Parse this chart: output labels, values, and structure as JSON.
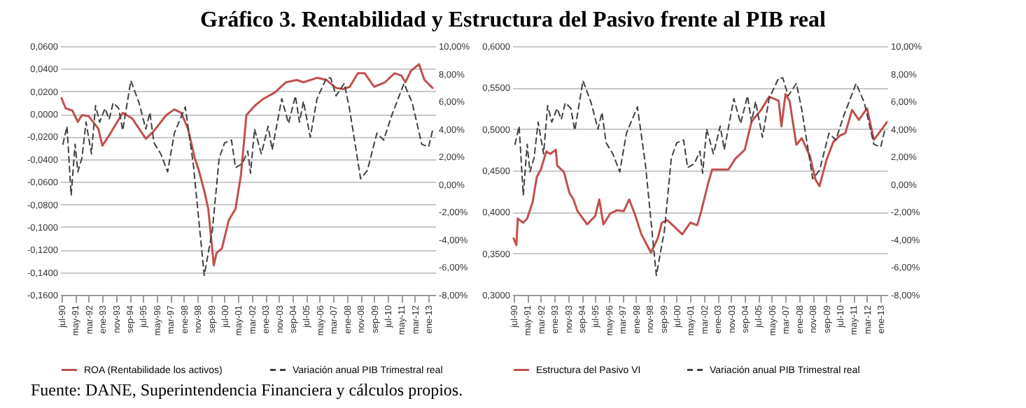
{
  "chart_data": [
    {
      "type": "line",
      "title": "Gráfico 3. Rentabilidad y Estructura del Pasivo frente al PIB real",
      "annotations": [
        "Fuente: DANE, Superintendencia Financiera y cálculos propios."
      ],
      "xlim": [
        "1990-06",
        "2013-06"
      ],
      "xticks": [
        {
          "value": "1990-07",
          "label": "jul-90"
        },
        {
          "value": "1991-05",
          "label": "may-91"
        },
        {
          "value": "1992-03",
          "label": "mar-92"
        },
        {
          "value": "1993-01",
          "label": "ene-93"
        },
        {
          "value": "1993-11",
          "label": "nov-93"
        },
        {
          "value": "1994-09",
          "label": "sep-94"
        },
        {
          "value": "1995-07",
          "label": "jul-95"
        },
        {
          "value": "1996-05",
          "label": "may-96"
        },
        {
          "value": "1997-03",
          "label": "mar-97"
        },
        {
          "value": "1998-01",
          "label": "ene-98"
        },
        {
          "value": "1998-11",
          "label": "nov-98"
        },
        {
          "value": "1999-09",
          "label": "sep-99"
        },
        {
          "value": "2000-07",
          "label": "jul-00"
        },
        {
          "value": "2001-05",
          "label": "may-01"
        },
        {
          "value": "2002-03",
          "label": "mar-02"
        },
        {
          "value": "2003-01",
          "label": "ene-03"
        },
        {
          "value": "2003-11",
          "label": "nov-03"
        },
        {
          "value": "2004-09",
          "label": "sep-04"
        },
        {
          "value": "2005-07",
          "label": "jul-05"
        },
        {
          "value": "2006-05",
          "label": "may-06"
        },
        {
          "value": "2007-03",
          "label": "mar-07"
        },
        {
          "value": "2008-01",
          "label": "ene-08"
        },
        {
          "value": "2008-11",
          "label": "nov-08"
        },
        {
          "value": "2009-09",
          "label": "sep-09"
        },
        {
          "value": "2010-07",
          "label": "jul-10"
        },
        {
          "value": "2011-05",
          "label": "may-11"
        },
        {
          "value": "2012-03",
          "label": "mar-12"
        },
        {
          "value": "2013-01",
          "label": "ene-13"
        }
      ],
      "ylim": [
        -0.16,
        0.06
      ],
      "yticks": [
        {
          "value": -0.16,
          "label": "-0,1600"
        },
        {
          "value": -0.14,
          "label": "-0,1400"
        },
        {
          "value": -0.12,
          "label": "-0,1200"
        },
        {
          "value": -0.1,
          "label": "-0,1000"
        },
        {
          "value": -0.08,
          "label": "-0,0800"
        },
        {
          "value": -0.06,
          "label": "-0,0600"
        },
        {
          "value": -0.04,
          "label": "-0,0400"
        },
        {
          "value": -0.02,
          "label": "-0,0200"
        },
        {
          "value": 0,
          "label": "0,0000"
        },
        {
          "value": 0.02,
          "label": "0,0200"
        },
        {
          "value": 0.04,
          "label": "0,0400"
        },
        {
          "value": 0.06,
          "label": "0,0600"
        }
      ],
      "y2lim": [
        -8,
        10
      ],
      "y2ticks": [
        {
          "value": -8,
          "label": "-8,00%"
        },
        {
          "value": -6,
          "label": "-6,00%"
        },
        {
          "value": -4,
          "label": "-4,00%"
        },
        {
          "value": -2,
          "label": "-2,00%"
        },
        {
          "value": 0,
          "label": "0,00%"
        },
        {
          "value": 2,
          "label": "2,00%"
        },
        {
          "value": 4,
          "label": "4,00%"
        },
        {
          "value": 6,
          "label": "6,00%"
        },
        {
          "value": 8,
          "label": "8,00%"
        },
        {
          "value": 10,
          "label": "10,00%"
        }
      ],
      "grid": "y",
      "legend": "bottom",
      "series": [
        {
          "name": "ROA (Rentabilidade los activos)",
          "color": "#c0504d",
          "line_style": "solid",
          "x": [
            "1990-07",
            "1990-10",
            "1991-03",
            "1991-07",
            "1991-10",
            "1992-03",
            "1992-10",
            "1993-01",
            "1993-06",
            "1994-04",
            "1994-11",
            "1995-09",
            "1996-03",
            "1996-12",
            "1997-06",
            "1997-11",
            "1998-04",
            "1998-09",
            "1998-12",
            "1999-04",
            "1999-07",
            "1999-11",
            "2000-01",
            "2000-05",
            "2000-10",
            "2001-03",
            "2001-07",
            "2001-11",
            "2002-05",
            "2002-11",
            "2003-08",
            "2004-04",
            "2004-12",
            "2005-05",
            "2006-03",
            "2006-10",
            "2007-05",
            "2007-10",
            "2008-03",
            "2008-09",
            "2009-02",
            "2009-09",
            "2010-05",
            "2010-12",
            "2011-05",
            "2011-08",
            "2011-12",
            "2012-06",
            "2012-10",
            "2013-04"
          ],
          "values": [
            0.014,
            0.005,
            0.003,
            -0.007,
            -0.001,
            -0.002,
            -0.013,
            -0.028,
            -0.019,
            0.001,
            -0.004,
            -0.022,
            -0.015,
            -0.001,
            0.004,
            0.001,
            -0.013,
            -0.039,
            -0.05,
            -0.068,
            -0.084,
            -0.134,
            -0.123,
            -0.119,
            -0.094,
            -0.084,
            -0.054,
            -0.001,
            0.007,
            0.013,
            0.019,
            0.028,
            0.03,
            0.028,
            0.032,
            0.03,
            0.023,
            0.022,
            0.024,
            0.036,
            0.036,
            0.024,
            0.028,
            0.036,
            0.034,
            0.028,
            0.038,
            0.044,
            0.03,
            0.023
          ]
        },
        {
          "name": "Variación anual PIB Trimestral real",
          "color": "#404040",
          "line_style": "dashed",
          "axis": "y2",
          "x": [
            "1990-08",
            "1990-11",
            "1991-02",
            "1991-05",
            "1991-07",
            "1991-10",
            "1992-01",
            "1992-05",
            "1992-08",
            "1992-11",
            "1993-03",
            "1993-06",
            "1993-09",
            "1994-01",
            "1994-04",
            "1994-10",
            "1995-04",
            "1995-09",
            "1995-12",
            "1996-03",
            "1996-08",
            "1997-01",
            "1997-06",
            "1998-02",
            "1998-08",
            "1999-04",
            "1999-10",
            "2000-03",
            "2000-07",
            "2000-12",
            "2001-03",
            "2001-08",
            "2001-12",
            "2002-02",
            "2002-05",
            "2002-10",
            "2003-03",
            "2003-06",
            "2004-01",
            "2004-06",
            "2004-11",
            "2005-02",
            "2005-05",
            "2005-10",
            "2006-03",
            "2006-10",
            "2007-01",
            "2007-05",
            "2007-11",
            "2008-03",
            "2008-11",
            "2009-04",
            "2009-11",
            "2010-04",
            "2010-10",
            "2011-07",
            "2012-01",
            "2012-08",
            "2013-01",
            "2013-04"
          ],
          "values": [
            2.9,
            4.2,
            -0.8,
            2.9,
            0.9,
            1.9,
            4.5,
            2.2,
            5.7,
            4.5,
            5.5,
            4.7,
            5.9,
            5.5,
            3.9,
            7.5,
            5.9,
            4.0,
            5.2,
            3.0,
            2.2,
            0.9,
            3.7,
            5.6,
            1.4,
            -6.6,
            -3.3,
            1.9,
            3.0,
            3.2,
            1.2,
            1.5,
            2.4,
            0.8,
            4.0,
            2.2,
            4.2,
            2.5,
            6.2,
            4.4,
            6.4,
            4.5,
            6.0,
            3.4,
            6.2,
            7.7,
            7.7,
            6.4,
            7.3,
            5.4,
            0.4,
            1.0,
            3.7,
            3.2,
            5.0,
            7.3,
            5.9,
            2.9,
            2.7,
            3.9
          ]
        }
      ]
    },
    {
      "type": "line",
      "xlim": [
        "1990-06",
        "2013-06"
      ],
      "xticks": [
        {
          "value": "1990-07",
          "label": "jul-90"
        },
        {
          "value": "1991-05",
          "label": "may-91"
        },
        {
          "value": "1992-03",
          "label": "mar-92"
        },
        {
          "value": "1993-01",
          "label": "ene-93"
        },
        {
          "value": "1993-11",
          "label": "nov-93"
        },
        {
          "value": "1994-09",
          "label": "sep-94"
        },
        {
          "value": "1995-07",
          "label": "jul-95"
        },
        {
          "value": "1996-05",
          "label": "may-96"
        },
        {
          "value": "1997-03",
          "label": "mar-97"
        },
        {
          "value": "1998-01",
          "label": "ene-98"
        },
        {
          "value": "1998-11",
          "label": "nov-98"
        },
        {
          "value": "1999-09",
          "label": "sep-99"
        },
        {
          "value": "2000-07",
          "label": "jul-00"
        },
        {
          "value": "2001-05",
          "label": "may-01"
        },
        {
          "value": "2002-03",
          "label": "mar-02"
        },
        {
          "value": "2003-01",
          "label": "ene-03"
        },
        {
          "value": "2003-11",
          "label": "nov-03"
        },
        {
          "value": "2004-09",
          "label": "sep-04"
        },
        {
          "value": "2005-07",
          "label": "jul-05"
        },
        {
          "value": "2006-05",
          "label": "may-06"
        },
        {
          "value": "2007-03",
          "label": "mar-07"
        },
        {
          "value": "2008-01",
          "label": "ene-08"
        },
        {
          "value": "2008-11",
          "label": "nov-08"
        },
        {
          "value": "2009-09",
          "label": "sep-09"
        },
        {
          "value": "2010-07",
          "label": "jul-10"
        },
        {
          "value": "2011-05",
          "label": "may-11"
        },
        {
          "value": "2012-03",
          "label": "mar-12"
        },
        {
          "value": "2013-01",
          "label": "ene-13"
        }
      ],
      "ylim": [
        0.3,
        0.6
      ],
      "yticks": [
        {
          "value": 0.3,
          "label": "0,3000"
        },
        {
          "value": 0.35,
          "label": "0,3500"
        },
        {
          "value": 0.4,
          "label": "0,4000"
        },
        {
          "value": 0.45,
          "label": "0,4500"
        },
        {
          "value": 0.5,
          "label": "0,5000"
        },
        {
          "value": 0.55,
          "label": "0,5500"
        },
        {
          "value": 0.6,
          "label": "0,6000"
        }
      ],
      "y2lim": [
        -8,
        10
      ],
      "y2ticks": [
        {
          "value": -8,
          "label": "-8,00%"
        },
        {
          "value": -6,
          "label": "-6,00%"
        },
        {
          "value": -4,
          "label": "-4,00%"
        },
        {
          "value": -2,
          "label": "-2,00%"
        },
        {
          "value": 0,
          "label": "0,00%"
        },
        {
          "value": 2,
          "label": "2,00%"
        },
        {
          "value": 4,
          "label": "4,00%"
        },
        {
          "value": 6,
          "label": "6,00%"
        },
        {
          "value": 8,
          "label": "8,00%"
        },
        {
          "value": 10,
          "label": "10,00%"
        }
      ],
      "grid": "y",
      "legend": "bottom",
      "series": [
        {
          "name": "Estructura del Pasivo VI",
          "color": "#c0504d",
          "line_style": "solid",
          "x": [
            "1990-07",
            "1990-09",
            "1990-10",
            "1991-02",
            "1991-05",
            "1991-09",
            "1991-12",
            "1992-03",
            "1992-07",
            "1992-10",
            "1993-02",
            "1993-03",
            "1993-08",
            "1993-12",
            "1994-03",
            "1994-06",
            "1995-01",
            "1995-07",
            "1995-10",
            "1996-01",
            "1996-06",
            "1996-11",
            "1997-04",
            "1997-08",
            "1997-12",
            "1998-05",
            "1998-12",
            "1999-05",
            "1999-08",
            "1999-12",
            "2000-06",
            "2000-11",
            "2001-05",
            "2001-10",
            "2002-01",
            "2002-06",
            "2002-09",
            "2003-02",
            "2003-09",
            "2004-02",
            "2004-09",
            "2005-02",
            "2005-09",
            "2006-03",
            "2006-10",
            "2006-12",
            "2007-03",
            "2007-06",
            "2007-11",
            "2008-03",
            "2008-09",
            "2009-01",
            "2009-04",
            "2009-09",
            "2010-02",
            "2010-07",
            "2010-11",
            "2011-04",
            "2011-09",
            "2012-03",
            "2012-08",
            "2013-01",
            "2013-06"
          ],
          "values": [
            0.368,
            0.36,
            0.392,
            0.387,
            0.392,
            0.412,
            0.442,
            0.451,
            0.473,
            0.47,
            0.475,
            0.456,
            0.448,
            0.423,
            0.415,
            0.401,
            0.385,
            0.395,
            0.415,
            0.385,
            0.398,
            0.402,
            0.401,
            0.415,
            0.398,
            0.373,
            0.351,
            0.368,
            0.387,
            0.39,
            0.381,
            0.373,
            0.387,
            0.384,
            0.401,
            0.434,
            0.451,
            0.451,
            0.451,
            0.464,
            0.475,
            0.509,
            0.523,
            0.539,
            0.534,
            0.503,
            0.542,
            0.534,
            0.481,
            0.489,
            0.467,
            0.439,
            0.431,
            0.462,
            0.484,
            0.492,
            0.495,
            0.523,
            0.511,
            0.525,
            0.487,
            0.498,
            0.509
          ]
        },
        {
          "name": "Variación anual PIB Trimestral real",
          "color": "#404040",
          "line_style": "dashed",
          "axis": "y2",
          "x": [
            "1990-08",
            "1990-11",
            "1991-02",
            "1991-05",
            "1991-07",
            "1991-10",
            "1992-01",
            "1992-05",
            "1992-08",
            "1992-11",
            "1993-03",
            "1993-06",
            "1993-09",
            "1994-01",
            "1994-04",
            "1994-10",
            "1995-04",
            "1995-09",
            "1995-12",
            "1996-03",
            "1996-08",
            "1997-01",
            "1997-06",
            "1998-02",
            "1998-08",
            "1999-04",
            "1999-10",
            "2000-03",
            "2000-07",
            "2000-12",
            "2001-03",
            "2001-08",
            "2001-12",
            "2002-02",
            "2002-05",
            "2002-10",
            "2003-03",
            "2003-06",
            "2004-01",
            "2004-06",
            "2004-11",
            "2005-02",
            "2005-05",
            "2005-10",
            "2006-03",
            "2006-10",
            "2007-01",
            "2007-05",
            "2007-11",
            "2008-03",
            "2008-11",
            "2009-04",
            "2009-11",
            "2010-04",
            "2010-10",
            "2011-07",
            "2012-01",
            "2012-08",
            "2013-01",
            "2013-04"
          ],
          "values": [
            2.9,
            4.2,
            -0.8,
            2.9,
            0.9,
            1.9,
            4.5,
            2.2,
            5.7,
            4.5,
            5.5,
            4.7,
            5.9,
            5.5,
            3.9,
            7.5,
            5.9,
            4.0,
            5.2,
            3.0,
            2.2,
            0.9,
            3.7,
            5.6,
            1.4,
            -6.6,
            -3.3,
            1.9,
            3.0,
            3.2,
            1.2,
            1.5,
            2.4,
            0.8,
            4.0,
            2.2,
            4.2,
            2.5,
            6.2,
            4.4,
            6.4,
            4.5,
            6.0,
            3.4,
            6.2,
            7.7,
            7.7,
            6.4,
            7.3,
            5.4,
            0.4,
            1.0,
            3.7,
            3.2,
            5.0,
            7.3,
            5.9,
            2.9,
            2.7,
            3.9
          ]
        }
      ]
    }
  ]
}
